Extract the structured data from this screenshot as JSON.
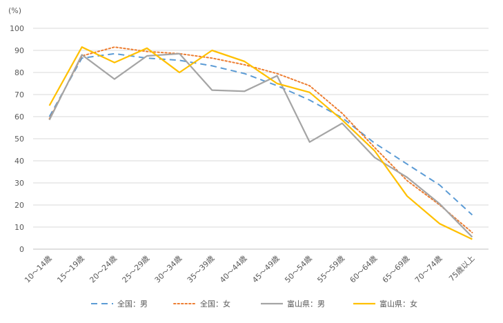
{
  "chart_data": {
    "type": "line",
    "title": "",
    "ylabel": "(%)",
    "xlabel": "",
    "ylim": [
      0,
      100
    ],
    "yticks": [
      0,
      10,
      20,
      30,
      40,
      50,
      60,
      70,
      80,
      90,
      100
    ],
    "grid": true,
    "legend": "bottom",
    "categories": [
      "10～14歳",
      "15～19歳",
      "20～24歳",
      "25～29歳",
      "30～34歳",
      "35～39歳",
      "40～44歳",
      "45～49歳",
      "50～54歳",
      "55～59歳",
      "60～64歳",
      "65～69歳",
      "70～74歳",
      "75歳以上"
    ],
    "series": [
      {
        "name": "全国：男",
        "color": "#5B9BD5",
        "dash": "dash",
        "values": [
          60.0,
          86.5,
          88.5,
          86.5,
          85.5,
          83.0,
          79.5,
          74.0,
          67.5,
          59.5,
          48.0,
          38.5,
          29.0,
          15.5
        ]
      },
      {
        "name": "全国：女",
        "color": "#ED7D31",
        "dash": "dot",
        "values": [
          59.0,
          87.5,
          91.5,
          89.5,
          88.5,
          86.5,
          83.5,
          79.5,
          74.0,
          61.5,
          46.0,
          31.0,
          20.0,
          7.5
        ]
      },
      {
        "name": "富山県：男",
        "color": "#A5A5A5",
        "dash": "solid",
        "values": [
          58.5,
          88.0,
          77.0,
          87.5,
          88.5,
          72.0,
          71.5,
          78.5,
          48.5,
          57.0,
          41.5,
          32.5,
          20.5,
          5.5
        ]
      },
      {
        "name": "富山県：女",
        "color": "#FFC000",
        "dash": "solid",
        "values": [
          65.0,
          91.5,
          84.5,
          91.0,
          80.0,
          90.0,
          85.0,
          75.0,
          71.0,
          58.5,
          44.5,
          24.0,
          11.5,
          4.5
        ]
      }
    ]
  }
}
